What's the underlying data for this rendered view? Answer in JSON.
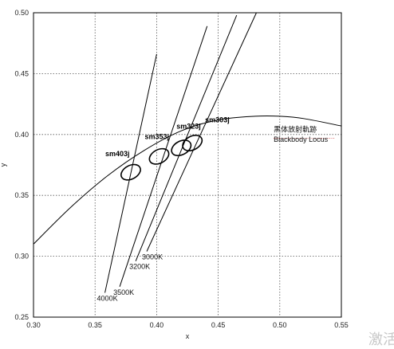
{
  "chart_data": {
    "type": "scatter",
    "title": "",
    "xlabel": "x",
    "ylabel": "y",
    "xlim": [
      0.3,
      0.55
    ],
    "ylim": [
      0.25,
      0.5
    ],
    "x_ticks": [
      "0.30",
      "0.35",
      "0.40",
      "0.45",
      "0.50",
      "0.55"
    ],
    "y_ticks": [
      "0.25",
      "0.30",
      "0.35",
      "0.40",
      "0.45",
      "0.50"
    ],
    "grid": true,
    "blackbody_label": [
      "黑体放射軌跡",
      "Blackbody Locus"
    ],
    "blackbody_locus": {
      "x": [
        0.3,
        0.33,
        0.36,
        0.39,
        0.42,
        0.45,
        0.48,
        0.5,
        0.52,
        0.55
      ],
      "y": [
        0.31,
        0.34,
        0.366,
        0.387,
        0.403,
        0.412,
        0.415,
        0.415,
        0.413,
        0.407
      ]
    },
    "cct_lines": [
      {
        "label": "4000K",
        "x": [
          0.358,
          0.4
        ],
        "y": [
          0.27,
          0.466
        ]
      },
      {
        "label": "3500K",
        "x": [
          0.37,
          0.441
        ],
        "y": [
          0.275,
          0.489
        ]
      },
      {
        "label": "3200K",
        "x": [
          0.383,
          0.465
        ],
        "y": [
          0.296,
          0.498
        ]
      },
      {
        "label": "3000K",
        "x": [
          0.392,
          0.481
        ],
        "y": [
          0.304,
          0.5
        ]
      }
    ],
    "series": [
      {
        "name": "sm403j",
        "center": [
          0.379,
          0.369
        ],
        "rx": 0.0055,
        "ry": 0.0085,
        "tilt": 62
      },
      {
        "name": "sm353j",
        "center": [
          0.402,
          0.382
        ],
        "rx": 0.0055,
        "ry": 0.0085,
        "tilt": 62
      },
      {
        "name": "sm323j",
        "center": [
          0.42,
          0.389
        ],
        "rx": 0.0055,
        "ry": 0.0085,
        "tilt": 62
      },
      {
        "name": "sm303j",
        "center": [
          0.429,
          0.393
        ],
        "rx": 0.0055,
        "ry": 0.0085,
        "tilt": 62
      }
    ]
  },
  "watermark": "激活"
}
